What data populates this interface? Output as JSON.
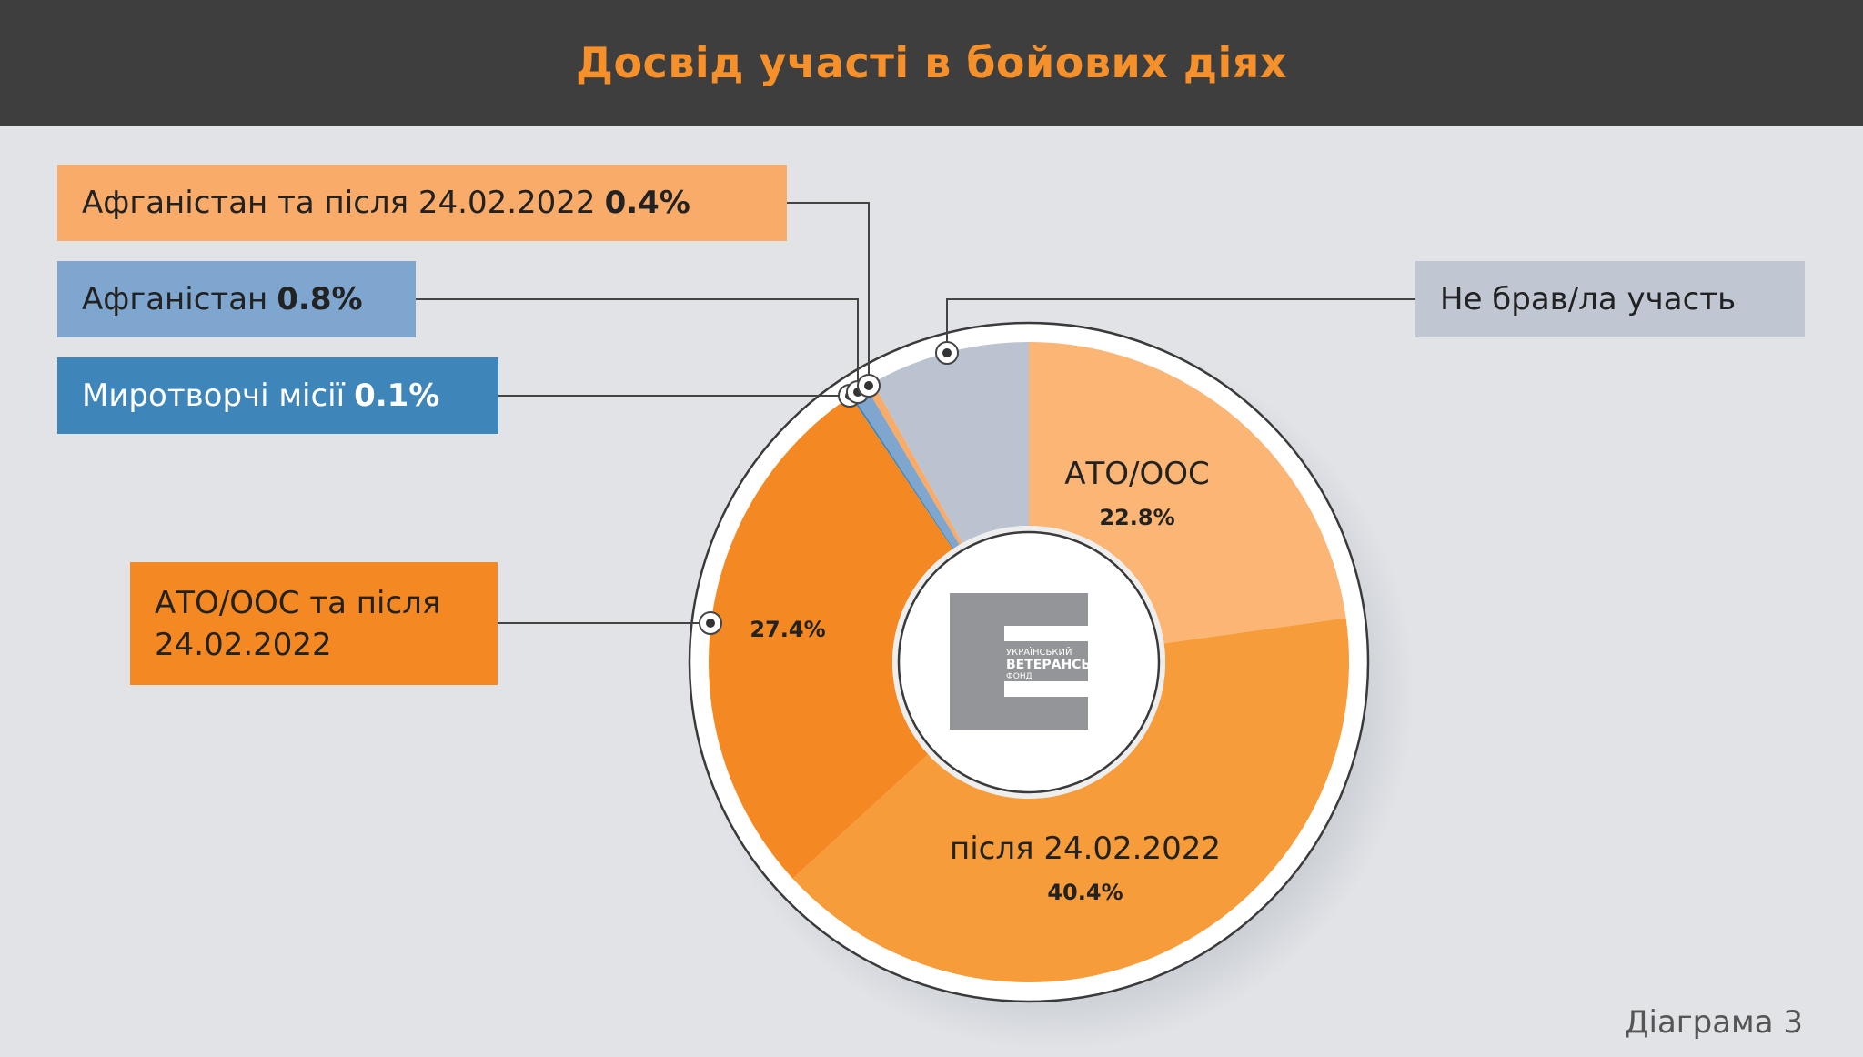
{
  "header": {
    "title": "Досвід участі в бойових діях"
  },
  "labels": {
    "afg_post": {
      "name": "Афганістан та після 24.02.2022",
      "value": "0.4%"
    },
    "afg": {
      "name": "Афганістан",
      "value": "0.8%"
    },
    "peace": {
      "name": "Миротворчі місії",
      "value": "0.1%"
    },
    "none": {
      "name": "Не брав/ла участь"
    },
    "ato_post": {
      "name": "АТО/ООС та після 24.02.2022"
    }
  },
  "logo": {
    "line1": "УКРАЇНСЬКИЙ",
    "line2": "ВЕТЕРАНСЬКИЙ",
    "line3": "ФОНД"
  },
  "footer": {
    "caption": "Діаграма 3"
  },
  "chart_data": {
    "type": "pie",
    "title": "Досвід участі в бойових діях",
    "slices": [
      {
        "name": "АТО/ООС",
        "value": 22.8,
        "label": "22.8%",
        "color": "#fbb574"
      },
      {
        "name": "після 24.02.2022",
        "value": 40.4,
        "label": "40.4%",
        "color": "#f69c3a"
      },
      {
        "name": "АТО/ООС та після 24.02.2022",
        "value": 27.4,
        "label": "27.4%",
        "color": "#f48823"
      },
      {
        "name": "Миротворчі місії",
        "value": 0.1,
        "label": "0.1%",
        "color": "#3e85b9"
      },
      {
        "name": "Афганістан",
        "value": 0.8,
        "label": "0.8%",
        "color": "#7ea6cf"
      },
      {
        "name": "Афганістан та після 24.02.2022",
        "value": 0.4,
        "label": "0.4%",
        "color": "#f9ab69"
      },
      {
        "name": "Не брав/ла участь",
        "value": 8.1,
        "label": "",
        "color": "#bac3cf"
      }
    ]
  }
}
